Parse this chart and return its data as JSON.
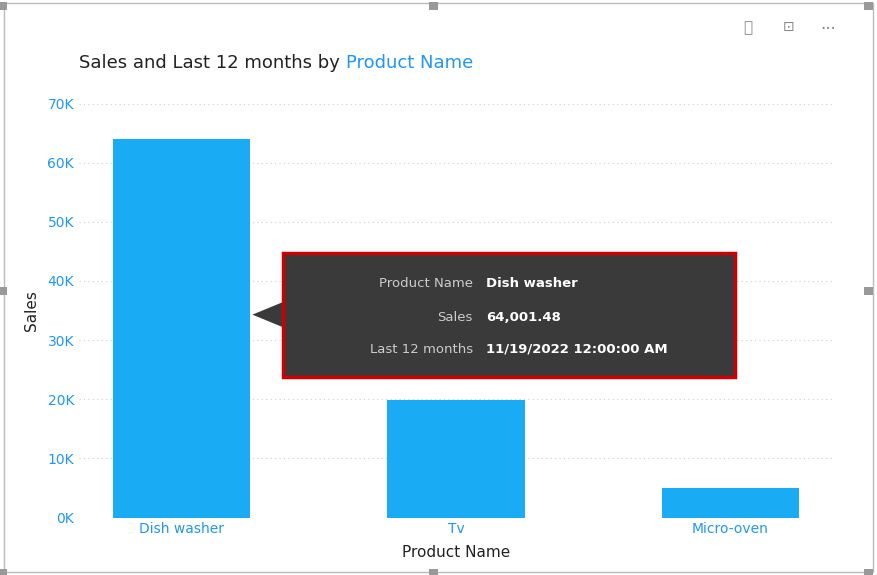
{
  "title_black": "Sales and Last 12 months by ",
  "title_blue": "Product Name",
  "categories": [
    "Dish washer",
    "Tv",
    "Micro-oven"
  ],
  "values": [
    64001.48,
    19800,
    5000
  ],
  "bar_color": "#1AABF5",
  "background_color": "#FFFFFF",
  "plot_bg_color": "#FFFFFF",
  "xlabel": "Product Name",
  "ylabel": "Sales",
  "ylim": [
    0,
    70000
  ],
  "yticks": [
    0,
    10000,
    20000,
    30000,
    40000,
    50000,
    60000,
    70000
  ],
  "ytick_labels": [
    "0K",
    "10K",
    "20K",
    "30K",
    "40K",
    "50K",
    "60K",
    "70K"
  ],
  "grid_color": "#CCCCCC",
  "tick_color": "#2196F3",
  "title_fontsize": 13,
  "axis_label_fontsize": 11,
  "tick_fontsize": 10,
  "tooltip": {
    "label1": "Product Name",
    "value1": "Dish washer",
    "label2": "Sales",
    "value2": "64,001.48",
    "label3": "Last 12 months",
    "value3": "11/19/2022 12:00:00 AM",
    "bg_color": "#3A3A3A",
    "border_color": "#CC0000",
    "text_color_label": "#CCCCCC",
    "text_color_value": "#FFFFFF"
  },
  "border_color": "#BBBBBB",
  "corner_color": "#999999"
}
